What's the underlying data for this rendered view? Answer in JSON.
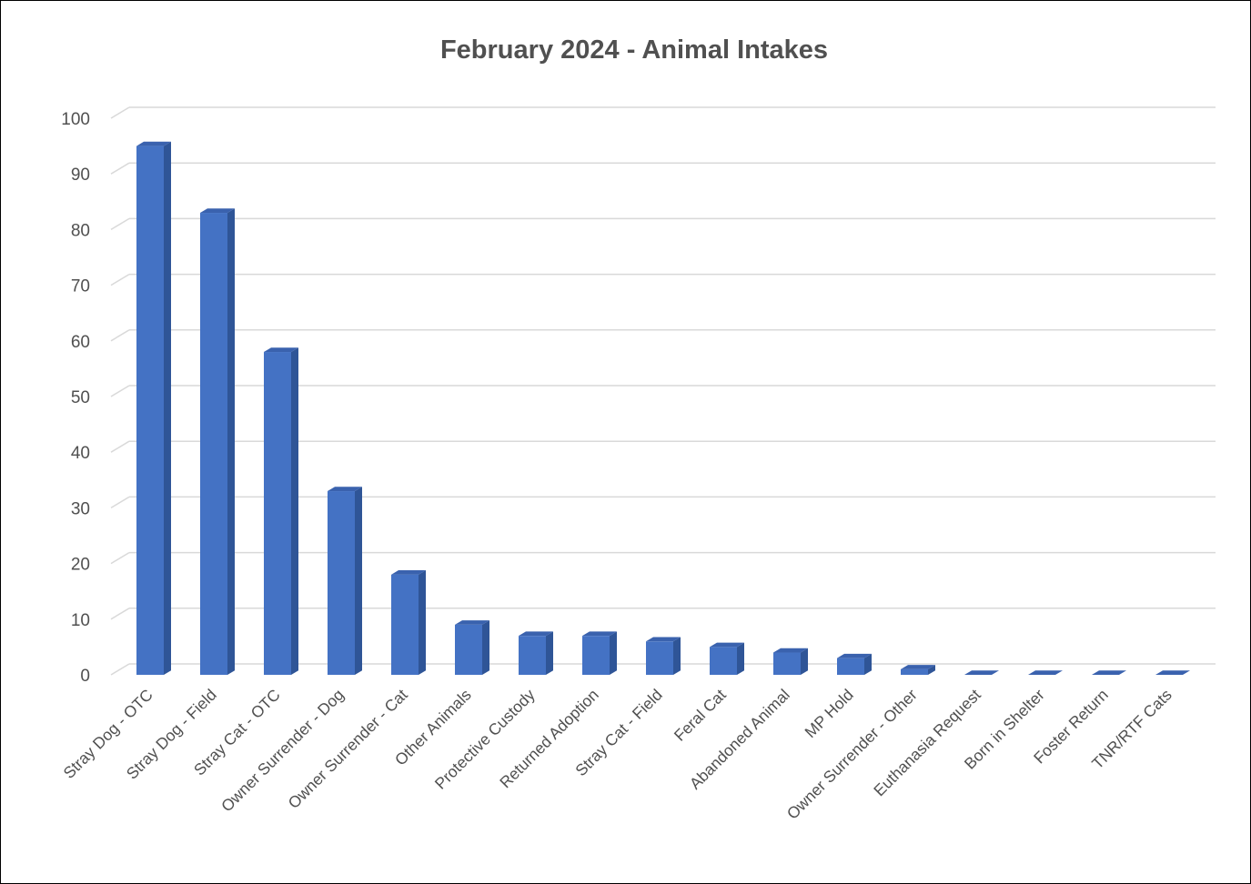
{
  "chart_data": {
    "type": "bar",
    "title": "February 2024 - Animal Intakes",
    "xlabel": "",
    "ylabel": "",
    "ylim": [
      0,
      100
    ],
    "yticks": [
      0,
      10,
      20,
      30,
      40,
      50,
      60,
      70,
      80,
      90,
      100
    ],
    "grid": true,
    "legend": "none",
    "style": "3d-column",
    "colors": {
      "bar_front": "#4472C4",
      "bar_side": "#2F5597",
      "bar_top": "#3A62AE",
      "gridline": "#D9D9D9",
      "text": "#505050"
    },
    "categories": [
      "Stray Dog - OTC",
      "Stray Dog - Field",
      "Stray Cat - OTC",
      "Owner Surrender - Dog",
      "Owner Surrender - Cat",
      "Other Animals",
      "Protective Custody",
      "Returned Adoption",
      "Stray Cat - Field",
      "Feral Cat",
      "Abandoned Animal",
      "MP Hold",
      "Owner Surrender - Other",
      "Euthanasia Request",
      "Born in Shelter",
      "Foster Return",
      "TNR/RTF Cats"
    ],
    "values": [
      95,
      83,
      58,
      33,
      18,
      9,
      7,
      7,
      6,
      5,
      4,
      3,
      1,
      0,
      0,
      0,
      0
    ]
  }
}
